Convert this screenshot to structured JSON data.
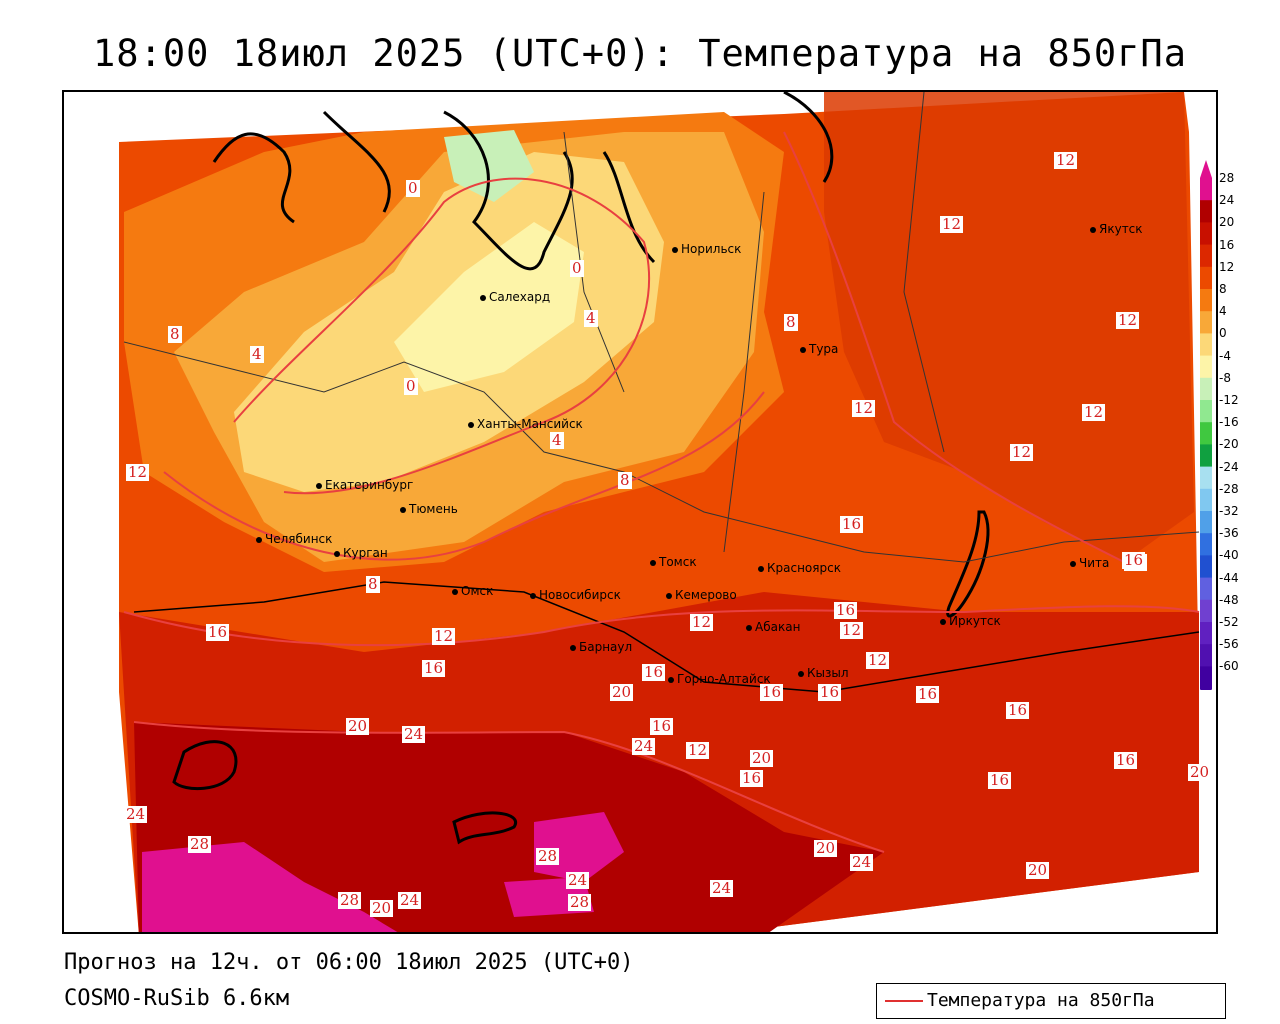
{
  "title": "18:00 18июл 2025 (UTC+0): Температура на 850гПа",
  "footer": {
    "forecast": "Прогноз на 12ч. от 06:00 18июл 2025 (UTC+0)",
    "model": "COSMO-RuSib 6.6км"
  },
  "legend": {
    "label": "Температура на 850гПа",
    "line_color": "#e03030"
  },
  "colorbar": {
    "ticks": [
      "28",
      "24",
      "20",
      "16",
      "12",
      "8",
      "4",
      "0",
      "-4",
      "-8",
      "-12",
      "-16",
      "-20",
      "-24",
      "-28",
      "-32",
      "-36",
      "-40",
      "-44",
      "-48",
      "-52",
      "-56",
      "-60"
    ],
    "colors": [
      "#e0108f",
      "#b00000",
      "#c81000",
      "#dc2800",
      "#ec4a00",
      "#f57a10",
      "#f8a838",
      "#fcd878",
      "#fdf4a8",
      "#c8f0b8",
      "#90e890",
      "#40c840",
      "#10a040",
      "#a8e0f0",
      "#80c8f0",
      "#50a0e8",
      "#3070e0",
      "#2050d0",
      "#6060e0",
      "#7040d0",
      "#6020c0",
      "#5010b0",
      "#4000a0"
    ]
  },
  "cities": [
    {
      "name": "Норильск"
    },
    {
      "name": "Якутск"
    },
    {
      "name": "Салехард"
    },
    {
      "name": "Тура"
    },
    {
      "name": "Ханты-Мансийск"
    },
    {
      "name": "Екатеринбург"
    },
    {
      "name": "Тюмень"
    },
    {
      "name": "Челябинск"
    },
    {
      "name": "Курган"
    },
    {
      "name": "Омск"
    },
    {
      "name": "Новосибирск"
    },
    {
      "name": "Томск"
    },
    {
      "name": "Красноярск"
    },
    {
      "name": "Кемерово"
    },
    {
      "name": "Барнаул"
    },
    {
      "name": "Абакан"
    },
    {
      "name": "Горно-Алтайск"
    },
    {
      "name": "Кызыл"
    },
    {
      "name": "Иркутск"
    },
    {
      "name": "Чита"
    }
  ],
  "contour_labels": [
    "0",
    "0",
    "0",
    "4",
    "4",
    "4",
    "8",
    "8",
    "8",
    "8",
    "12",
    "12",
    "12",
    "12",
    "12",
    "12",
    "12",
    "12",
    "12",
    "12",
    "12",
    "12",
    "16",
    "16",
    "16",
    "16",
    "16",
    "16",
    "16",
    "16",
    "16",
    "16",
    "16",
    "16",
    "16",
    "16",
    "16",
    "20",
    "20",
    "20",
    "20",
    "20",
    "20",
    "20",
    "24",
    "24",
    "24",
    "24",
    "24",
    "24",
    "24",
    "28",
    "28",
    "28",
    "28"
  ]
}
